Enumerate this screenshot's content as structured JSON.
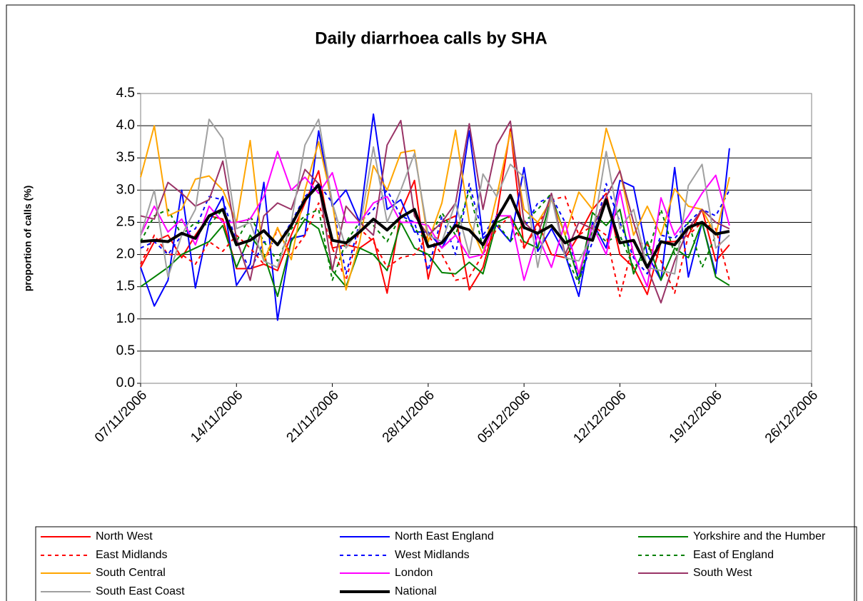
{
  "chart_data": {
    "type": "line",
    "title": "Daily diarrhoea calls by SHA",
    "ylabel": "proportion of calls (%)",
    "x": [
      "07/11/2006",
      "08/11/2006",
      "09/11/2006",
      "10/11/2006",
      "11/11/2006",
      "12/11/2006",
      "13/11/2006",
      "14/11/2006",
      "15/11/2006",
      "16/11/2006",
      "17/11/2006",
      "18/11/2006",
      "19/11/2006",
      "20/11/2006",
      "21/11/2006",
      "22/11/2006",
      "23/11/2006",
      "24/11/2006",
      "25/11/2006",
      "26/11/2006",
      "27/11/2006",
      "28/11/2006",
      "29/11/2006",
      "30/11/2006",
      "01/12/2006",
      "02/12/2006",
      "03/12/2006",
      "04/12/2006",
      "05/12/2006",
      "06/12/2006",
      "07/12/2006",
      "08/12/2006",
      "09/12/2006",
      "10/12/2006",
      "11/12/2006",
      "12/12/2006",
      "13/12/2006",
      "14/12/2006",
      "15/12/2006",
      "16/12/2006",
      "17/12/2006",
      "18/12/2006",
      "19/12/2006",
      "20/12/2006"
    ],
    "xlim": [
      "07/11/2006",
      "26/12/2006"
    ],
    "xticks": [
      "07/11/2006",
      "14/11/2006",
      "21/11/2006",
      "28/11/2006",
      "05/12/2006",
      "12/12/2006",
      "19/12/2006",
      "26/12/2006"
    ],
    "ylim": [
      0,
      4.5
    ],
    "yticks": [
      {
        "value": 0,
        "label": "0.0"
      },
      0.5,
      {
        "value": 1,
        "label": "1.0"
      },
      1.5,
      {
        "value": 2,
        "label": "2.0"
      },
      2.5,
      {
        "value": 3,
        "label": "3.0"
      },
      3.5,
      {
        "value": 4,
        "label": "4.0"
      },
      4.5
    ],
    "grid": true,
    "series": [
      {
        "name": "North West",
        "color": "#ff0000",
        "line_style": "solid",
        "values": [
          1.8,
          2.2,
          2.3,
          1.95,
          2.3,
          2.6,
          2.55,
          1.78,
          1.78,
          1.85,
          1.75,
          2.3,
          2.8,
          3.3,
          2.1,
          2.15,
          2.1,
          2.25,
          1.4,
          2.65,
          3.15,
          1.62,
          2.5,
          2.6,
          1.45,
          1.8,
          2.6,
          3.95,
          2.1,
          2.5,
          2.0,
          1.95,
          2.3,
          2.7,
          2.95,
          2.0,
          1.8,
          1.38,
          2.2,
          2.2,
          2.3,
          2.7,
          1.9,
          2.15
        ]
      },
      {
        "name": "North East England",
        "color": "#0000ff",
        "line_style": "solid",
        "values": [
          1.8,
          1.2,
          1.6,
          3.0,
          1.48,
          2.5,
          2.9,
          1.52,
          1.85,
          3.12,
          0.98,
          2.25,
          2.3,
          3.92,
          2.75,
          3.0,
          2.5,
          4.18,
          2.7,
          2.85,
          2.35,
          2.35,
          2.1,
          2.5,
          3.92,
          2.25,
          2.45,
          2.2,
          3.35,
          2.05,
          2.4,
          2.0,
          1.35,
          2.5,
          2.1,
          3.15,
          3.05,
          2.0,
          1.6,
          3.35,
          1.65,
          2.5,
          1.7,
          3.65
        ]
      },
      {
        "name": "Yorkshire and the Humber",
        "color": "#008000",
        "line_style": "solid",
        "values": [
          1.5,
          1.65,
          1.8,
          2.0,
          2.1,
          2.2,
          2.45,
          1.8,
          2.3,
          2.0,
          1.35,
          2.2,
          2.55,
          2.4,
          1.75,
          1.5,
          2.1,
          2.0,
          1.75,
          2.5,
          2.1,
          2.0,
          1.72,
          1.7,
          1.88,
          1.7,
          2.5,
          2.6,
          2.2,
          2.1,
          2.9,
          2.3,
          1.6,
          2.65,
          2.45,
          2.7,
          1.7,
          2.2,
          1.6,
          2.1,
          1.95,
          2.5,
          1.65,
          1.52
        ]
      },
      {
        "name": "East Midlands",
        "color": "#ff0000",
        "line_style": "dashed",
        "values": [
          1.85,
          2.3,
          2.0,
          2.0,
          1.85,
          2.2,
          2.05,
          2.3,
          2.1,
          1.85,
          2.4,
          2.0,
          2.3,
          2.8,
          2.1,
          1.6,
          2.4,
          2.2,
          1.8,
          1.95,
          2.0,
          2.3,
          2.0,
          1.6,
          1.65,
          2.0,
          2.4,
          2.6,
          2.1,
          2.45,
          2.85,
          2.9,
          2.3,
          2.45,
          2.3,
          1.35,
          2.2,
          2.15,
          1.9,
          1.4,
          2.3,
          2.5,
          2.4,
          1.6
        ]
      },
      {
        "name": "West Midlands",
        "color": "#0000ff",
        "line_style": "dashed",
        "values": [
          2.1,
          2.2,
          2.0,
          2.3,
          2.4,
          2.9,
          2.85,
          2.2,
          1.75,
          2.2,
          2.15,
          2.5,
          2.9,
          3.1,
          2.8,
          1.7,
          2.5,
          2.7,
          3.0,
          2.6,
          2.5,
          1.75,
          2.6,
          2.0,
          3.1,
          2.3,
          2.6,
          2.9,
          2.4,
          2.8,
          2.9,
          2.5,
          1.6,
          2.2,
          3.1,
          2.5,
          1.95,
          1.7,
          2.3,
          2.25,
          2.5,
          2.7,
          2.6,
          3.0
        ]
      },
      {
        "name": "East of England",
        "color": "#008000",
        "line_style": "dashed",
        "values": [
          2.2,
          2.6,
          2.7,
          2.3,
          2.5,
          2.45,
          2.7,
          2.2,
          2.6,
          2.2,
          1.9,
          2.4,
          2.6,
          2.7,
          1.6,
          2.2,
          2.5,
          2.45,
          2.2,
          2.6,
          2.4,
          2.2,
          2.65,
          2.3,
          3.0,
          2.1,
          2.5,
          2.2,
          2.5,
          2.7,
          2.95,
          2.0,
          1.55,
          2.4,
          2.2,
          2.3,
          1.8,
          2.0,
          2.7,
          2.0,
          2.5,
          1.8,
          2.3,
          2.35
        ]
      },
      {
        "name": "South Central",
        "color": "#ffa500",
        "line_style": "solid",
        "values": [
          3.2,
          4.0,
          2.6,
          2.7,
          3.17,
          3.22,
          3.0,
          2.5,
          3.77,
          1.9,
          2.42,
          1.92,
          3.0,
          3.75,
          2.8,
          1.45,
          2.2,
          3.38,
          3.0,
          3.58,
          3.62,
          2.2,
          2.8,
          3.93,
          2.5,
          2.0,
          2.9,
          3.9,
          2.7,
          2.5,
          2.85,
          2.3,
          2.97,
          2.7,
          3.96,
          3.3,
          2.3,
          2.75,
          2.3,
          3.02,
          2.75,
          2.7,
          2.3,
          3.2
        ]
      },
      {
        "name": "London",
        "color": "#ff00ff",
        "line_style": "solid",
        "values": [
          2.3,
          2.75,
          2.35,
          2.55,
          2.15,
          2.75,
          2.5,
          2.5,
          2.55,
          2.9,
          3.6,
          3.0,
          3.2,
          2.95,
          3.27,
          2.5,
          2.5,
          2.8,
          2.9,
          2.5,
          2.5,
          2.45,
          2.1,
          2.3,
          1.95,
          2.0,
          2.6,
          2.6,
          1.6,
          2.3,
          1.8,
          2.5,
          1.7,
          2.45,
          2.0,
          3.0,
          2.0,
          1.5,
          2.88,
          2.3,
          2.6,
          2.95,
          3.23,
          2.45
        ]
      },
      {
        "name": "South West",
        "color": "#993366",
        "line_style": "solid",
        "values": [
          2.6,
          2.55,
          3.12,
          2.95,
          2.75,
          2.85,
          3.45,
          2.25,
          1.6,
          2.6,
          2.8,
          2.7,
          3.32,
          3.1,
          1.75,
          2.75,
          2.5,
          2.3,
          3.7,
          4.08,
          2.6,
          2.3,
          2.5,
          2.8,
          4.03,
          2.7,
          3.7,
          4.07,
          2.5,
          2.3,
          2.95,
          2.0,
          2.5,
          2.4,
          2.9,
          3.3,
          2.5,
          1.8,
          1.25,
          1.9,
          2.4,
          2.7,
          2.5,
          2.4
        ]
      },
      {
        "name": "South East Coast",
        "color": "#a0a0a0",
        "line_style": "solid",
        "values": [
          2.3,
          3.0,
          1.65,
          2.3,
          2.7,
          4.1,
          3.8,
          2.4,
          2.5,
          1.9,
          1.8,
          2.5,
          3.7,
          4.1,
          2.8,
          2.1,
          2.4,
          3.67,
          2.5,
          3.0,
          3.57,
          2.3,
          2.2,
          2.8,
          2.0,
          3.25,
          2.9,
          3.4,
          3.2,
          1.8,
          2.9,
          1.95,
          1.9,
          2.3,
          3.6,
          2.4,
          2.7,
          1.8,
          1.75,
          1.7,
          3.07,
          3.4,
          2.1,
          2.3
        ]
      },
      {
        "name": "National",
        "color": "#000000",
        "line_style": "bold",
        "values": [
          2.2,
          2.22,
          2.2,
          2.33,
          2.25,
          2.6,
          2.7,
          2.15,
          2.22,
          2.37,
          2.15,
          2.45,
          2.85,
          3.08,
          2.22,
          2.18,
          2.35,
          2.55,
          2.38,
          2.58,
          2.7,
          2.12,
          2.18,
          2.45,
          2.38,
          2.15,
          2.55,
          2.92,
          2.42,
          2.33,
          2.45,
          2.18,
          2.28,
          2.22,
          2.85,
          2.18,
          2.22,
          1.8,
          2.2,
          2.15,
          2.42,
          2.5,
          2.32,
          2.36
        ]
      }
    ]
  }
}
